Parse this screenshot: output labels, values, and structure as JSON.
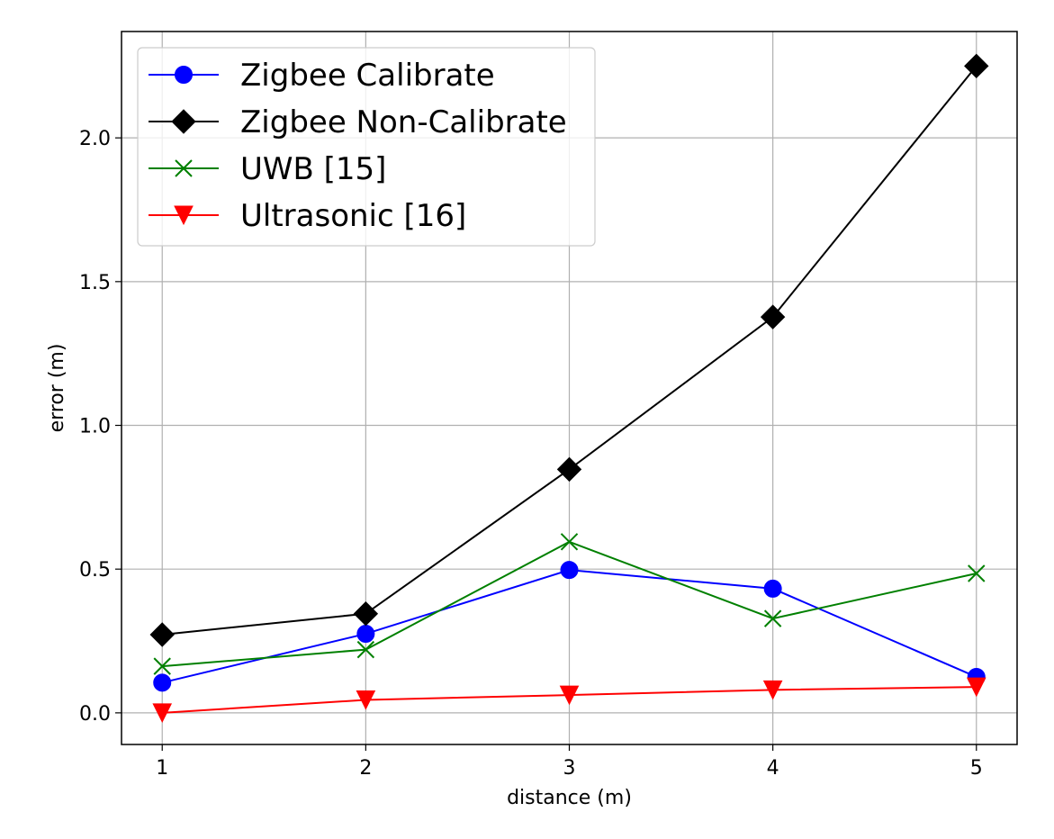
{
  "chart_data": {
    "type": "line",
    "title": "",
    "xlabel": "distance (m)",
    "ylabel": "error (m)",
    "x": [
      1,
      2,
      3,
      4,
      5
    ],
    "xlim": [
      0.8,
      5.2
    ],
    "ylim": [
      -0.11,
      2.37
    ],
    "xticks": [
      1,
      2,
      3,
      4,
      5
    ],
    "xtick_labels": [
      "1",
      "2",
      "3",
      "4",
      "5"
    ],
    "yticks": [
      0.0,
      0.5,
      1.0,
      1.5,
      2.0
    ],
    "ytick_labels": [
      "0.0",
      "0.5",
      "1.0",
      "1.5",
      "2.0"
    ],
    "grid": true,
    "legend_position": "top-left",
    "series": [
      {
        "name": "Zigbee Calibrate",
        "values": [
          0.105,
          0.275,
          0.497,
          0.432,
          0.125
        ],
        "color": "#0000ff",
        "marker": "circle"
      },
      {
        "name": "Zigbee Non-Calibrate",
        "values": [
          0.272,
          0.345,
          0.847,
          1.377,
          2.25
        ],
        "color": "#000000",
        "marker": "diamond"
      },
      {
        "name": "UWB [15]",
        "values": [
          0.162,
          0.22,
          0.595,
          0.328,
          0.485
        ],
        "color": "#008000",
        "marker": "x"
      },
      {
        "name": "Ultrasonic [16]",
        "values": [
          0.0,
          0.045,
          0.062,
          0.08,
          0.09
        ],
        "color": "#ff0000",
        "marker": "triangle-down"
      }
    ]
  }
}
